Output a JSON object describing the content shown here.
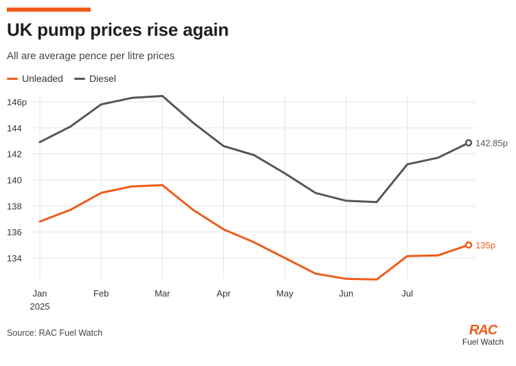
{
  "header": {
    "title": "UK pump prices rise again",
    "subtitle": "All are average pence per litre prices"
  },
  "legend": [
    {
      "label": "Unleaded",
      "color": "#f05a1a"
    },
    {
      "label": "Diesel",
      "color": "#555555"
    }
  ],
  "footer": {
    "source": "Source: RAC Fuel Watch",
    "logo_mark": "RAC",
    "logo_text": "Fuel Watch"
  },
  "chart_data": {
    "type": "line",
    "ylim": [
      132,
      146.5
    ],
    "y_ticks": [
      {
        "value": 134,
        "label": "134"
      },
      {
        "value": 136,
        "label": "136"
      },
      {
        "value": 138,
        "label": "138"
      },
      {
        "value": 140,
        "label": "140"
      },
      {
        "value": 142,
        "label": "142"
      },
      {
        "value": 144,
        "label": "144"
      },
      {
        "value": 146,
        "label": "146p"
      }
    ],
    "x_ticks": [
      {
        "label": "Jan",
        "sub": "2025",
        "index": 0
      },
      {
        "label": "Feb",
        "index": 2
      },
      {
        "label": "Mar",
        "index": 4
      },
      {
        "label": "Apr",
        "index": 6
      },
      {
        "label": "May",
        "index": 8
      },
      {
        "label": "Jun",
        "index": 10
      },
      {
        "label": "Jul",
        "index": 12
      }
    ],
    "grid": true,
    "series": [
      {
        "name": "Unleaded",
        "color": "#f05a1a",
        "values": [
          136.8,
          137.7,
          139.0,
          139.5,
          139.6,
          137.7,
          136.2,
          135.2,
          134.0,
          132.8,
          132.4,
          132.35,
          134.15,
          134.2,
          135.0
        ],
        "end_label": "135p"
      },
      {
        "name": "Diesel",
        "color": "#555555",
        "values": [
          142.9,
          144.1,
          145.8,
          146.3,
          146.45,
          144.4,
          142.6,
          141.9,
          140.5,
          139.0,
          138.4,
          138.3,
          141.2,
          141.7,
          142.85
        ],
        "end_label": "142.85p"
      }
    ]
  }
}
